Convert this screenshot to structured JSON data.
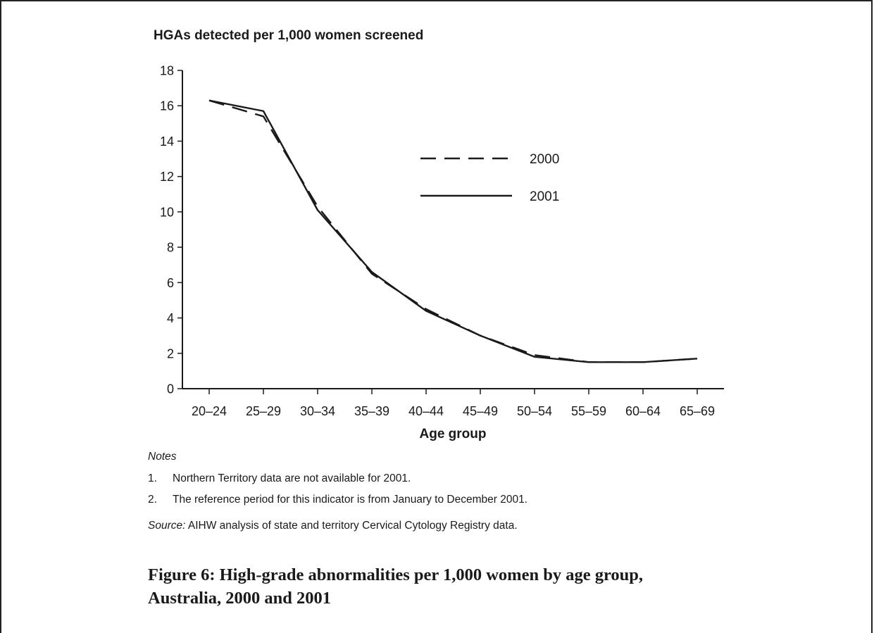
{
  "chart_data": {
    "type": "line",
    "title": "HGAs detected per 1,000 women screened",
    "xlabel": "Age group",
    "ylabel": "",
    "categories": [
      "20–24",
      "25–29",
      "30–34",
      "35–39",
      "40–44",
      "45–49",
      "50–54",
      "55–59",
      "60–64",
      "65–69"
    ],
    "ylim": [
      0,
      18
    ],
    "yticks": [
      0,
      2,
      4,
      6,
      8,
      10,
      12,
      14,
      16,
      18
    ],
    "grid": false,
    "legend_position": "upper-right",
    "series": [
      {
        "name": "2000",
        "style": "dashed",
        "color": "#1a1a1a",
        "values": [
          16.3,
          15.4,
          10.3,
          6.5,
          4.5,
          3.0,
          1.9,
          1.5,
          1.5,
          1.7
        ]
      },
      {
        "name": "2001",
        "style": "solid",
        "color": "#1a1a1a",
        "values": [
          16.3,
          15.7,
          10.1,
          6.6,
          4.4,
          3.0,
          1.8,
          1.5,
          1.5,
          1.7
        ]
      }
    ]
  },
  "notes": {
    "heading": "Notes",
    "items": [
      {
        "num": "1.",
        "text": "Northern Territory data are not available for 2001."
      },
      {
        "num": "2.",
        "text": "The reference period for this indicator is from January to December 2001."
      }
    ],
    "source_label": "Source:",
    "source_text": " AIHW analysis of state and territory Cervical Cytology Registry data."
  },
  "caption": {
    "line1": "Figure 6: High-grade abnormalities per 1,000 women by age group,",
    "line2": "Australia, 2000 and 2001"
  }
}
